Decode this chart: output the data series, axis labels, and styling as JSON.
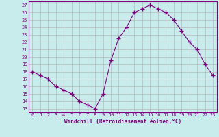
{
  "x": [
    0,
    1,
    2,
    3,
    4,
    5,
    6,
    7,
    8,
    9,
    10,
    11,
    12,
    13,
    14,
    15,
    16,
    17,
    18,
    19,
    20,
    21,
    22,
    23
  ],
  "y": [
    18,
    17.5,
    17,
    16,
    15.5,
    15,
    14,
    13.5,
    13,
    15,
    19.5,
    22.5,
    24,
    26,
    26.5,
    27,
    26.5,
    26,
    25,
    23.5,
    22,
    21,
    19,
    17.5
  ],
  "line_color": "#800080",
  "marker": "+",
  "bg_color": "#c8ecec",
  "grid_color": "#b0b0b0",
  "xlabel": "Windchill (Refroidissement éolien,°C)",
  "xlim": [
    -0.5,
    23.5
  ],
  "ylim": [
    12.5,
    27.5
  ],
  "yticks": [
    13,
    14,
    15,
    16,
    17,
    18,
    19,
    20,
    21,
    22,
    23,
    24,
    25,
    26,
    27
  ],
  "xticks": [
    0,
    1,
    2,
    3,
    4,
    5,
    6,
    7,
    8,
    9,
    10,
    11,
    12,
    13,
    14,
    15,
    16,
    17,
    18,
    19,
    20,
    21,
    22,
    23
  ],
  "tick_color": "#800080",
  "border_color": "#800080",
  "tick_fontsize": 5.0,
  "xlabel_fontsize": 5.5
}
